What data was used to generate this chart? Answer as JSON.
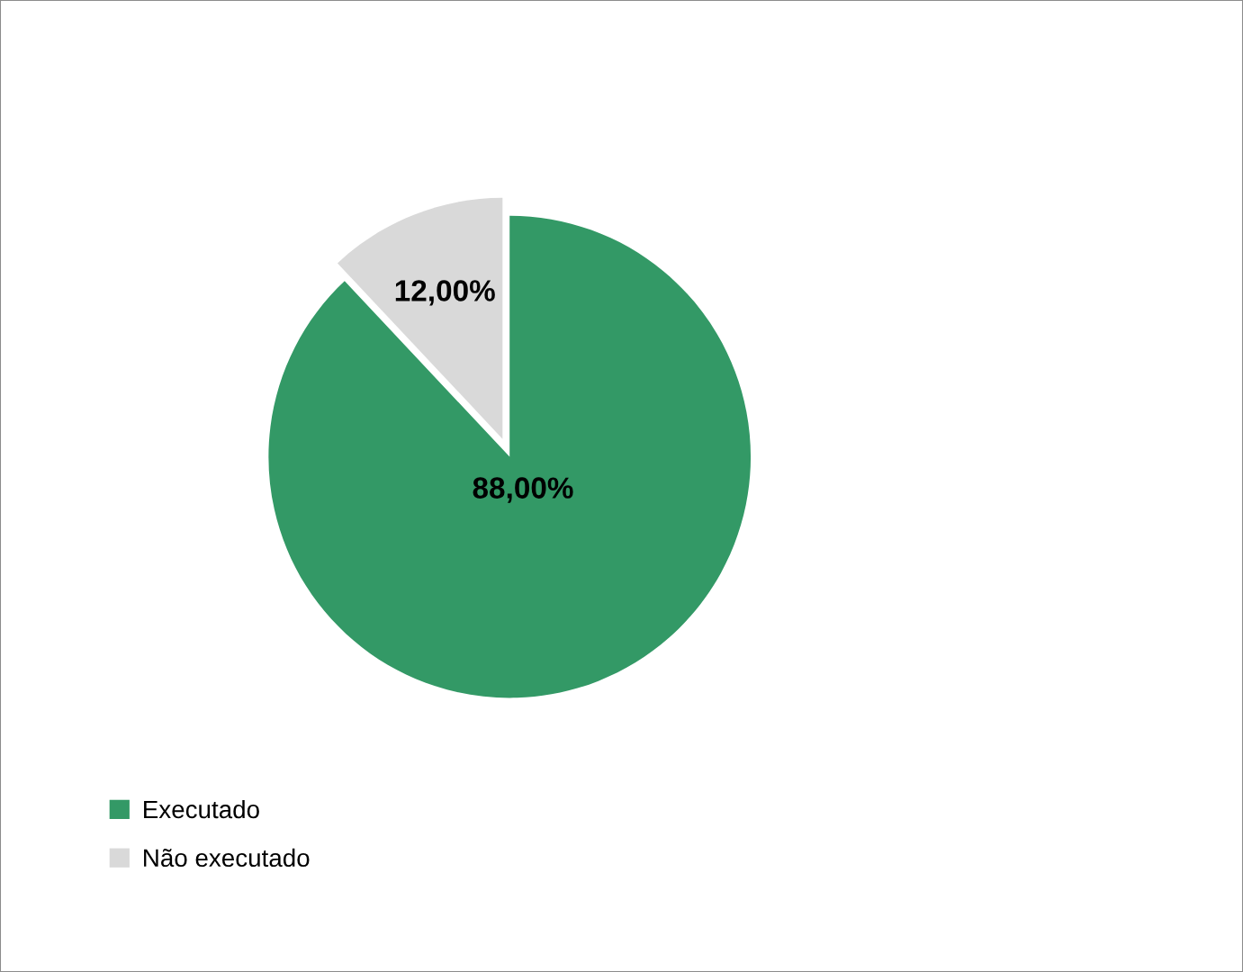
{
  "chart_data": {
    "type": "pie",
    "categories": [
      "Executado",
      "Não executado"
    ],
    "values": [
      88,
      12
    ],
    "colors": [
      "#339966",
      "#d9d9d9"
    ],
    "value_labels": [
      "88,00%",
      "12,00%"
    ],
    "legend": "bottom left"
  }
}
